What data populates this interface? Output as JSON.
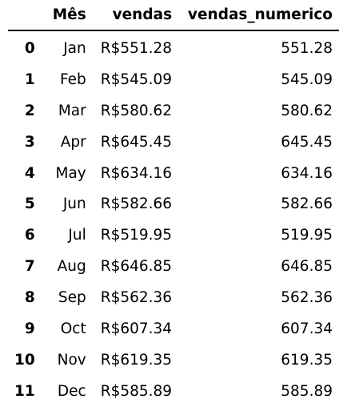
{
  "table": {
    "headers": {
      "index": "",
      "mes": "Mês",
      "vendas": "vendas",
      "vendas_numerico": "vendas_numerico"
    },
    "rows": [
      {
        "index": "0",
        "mes": "Jan",
        "vendas": "R$551.28",
        "vendas_numerico": "551.28"
      },
      {
        "index": "1",
        "mes": "Feb",
        "vendas": "R$545.09",
        "vendas_numerico": "545.09"
      },
      {
        "index": "2",
        "mes": "Mar",
        "vendas": "R$580.62",
        "vendas_numerico": "580.62"
      },
      {
        "index": "3",
        "mes": "Apr",
        "vendas": "R$645.45",
        "vendas_numerico": "645.45"
      },
      {
        "index": "4",
        "mes": "May",
        "vendas": "R$634.16",
        "vendas_numerico": "634.16"
      },
      {
        "index": "5",
        "mes": "Jun",
        "vendas": "R$582.66",
        "vendas_numerico": "582.66"
      },
      {
        "index": "6",
        "mes": "Jul",
        "vendas": "R$519.95",
        "vendas_numerico": "519.95"
      },
      {
        "index": "7",
        "mes": "Aug",
        "vendas": "R$646.85",
        "vendas_numerico": "646.85"
      },
      {
        "index": "8",
        "mes": "Sep",
        "vendas": "R$562.36",
        "vendas_numerico": "562.36"
      },
      {
        "index": "9",
        "mes": "Oct",
        "vendas": "R$607.34",
        "vendas_numerico": "607.34"
      },
      {
        "index": "10",
        "mes": "Nov",
        "vendas": "R$619.35",
        "vendas_numerico": "619.35"
      },
      {
        "index": "11",
        "mes": "Dec",
        "vendas": "R$585.89",
        "vendas_numerico": "585.89"
      }
    ]
  }
}
